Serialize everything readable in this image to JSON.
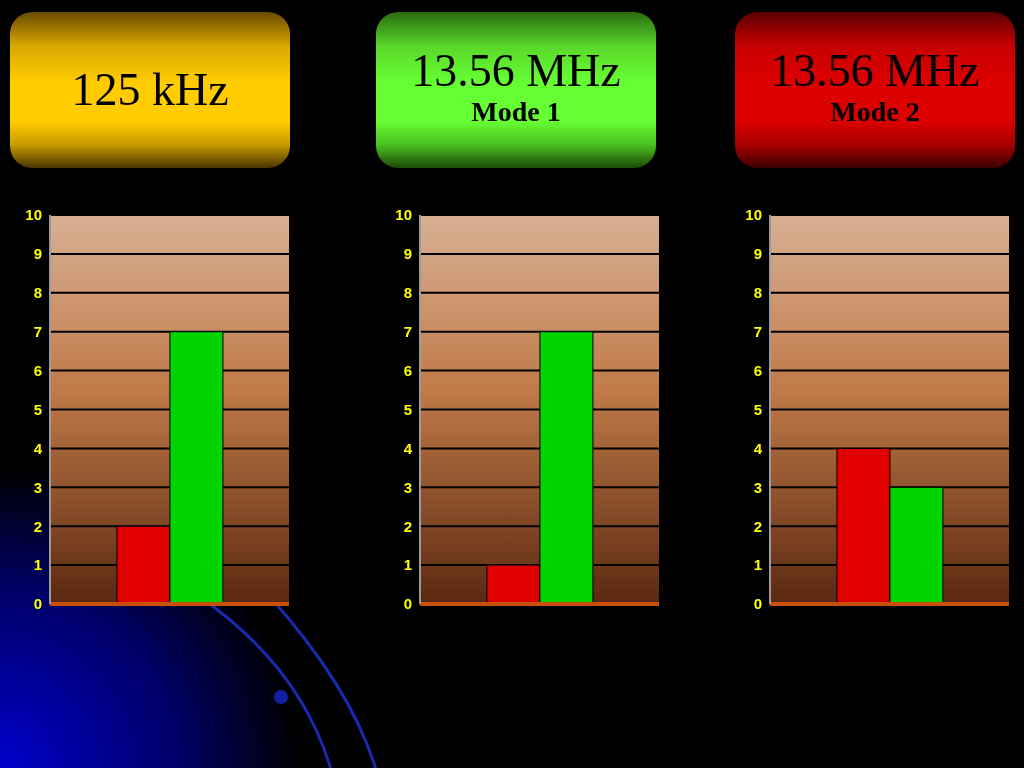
{
  "chart_data": [
    {
      "type": "bar",
      "title": "125 kHz",
      "categories": [
        null
      ],
      "series": [
        {
          "color": "#e00000",
          "values": [
            2
          ]
        },
        {
          "color": "#00d400",
          "values": [
            7
          ]
        }
      ],
      "ylim": [
        0,
        10
      ],
      "yticks": [
        0,
        1,
        2,
        3,
        4,
        5,
        6,
        7,
        8,
        9,
        10
      ],
      "grid": "y",
      "tick_labels": "y"
    },
    {
      "type": "bar",
      "title": "13.56 MHz",
      "subtitle": "Mode 1",
      "categories": [
        null
      ],
      "series": [
        {
          "color": "#e00000",
          "values": [
            1
          ]
        },
        {
          "color": "#00d400",
          "values": [
            7
          ]
        }
      ],
      "ylim": [
        0,
        10
      ],
      "yticks": [
        0,
        1,
        2,
        3,
        4,
        5,
        6,
        7,
        8,
        9,
        10
      ],
      "grid": "y",
      "tick_labels": "y"
    },
    {
      "type": "bar",
      "title": "13.56 MHz",
      "subtitle": "Mode 2",
      "categories": [
        null
      ],
      "series": [
        {
          "color": "#e00000",
          "values": [
            4
          ]
        },
        {
          "color": "#00d400",
          "values": [
            3
          ]
        }
      ],
      "ylim": [
        0,
        10
      ],
      "yticks": [
        0,
        1,
        2,
        3,
        4,
        5,
        6,
        7,
        8,
        9,
        10
      ],
      "grid": "y",
      "tick_labels": "y"
    }
  ]
}
